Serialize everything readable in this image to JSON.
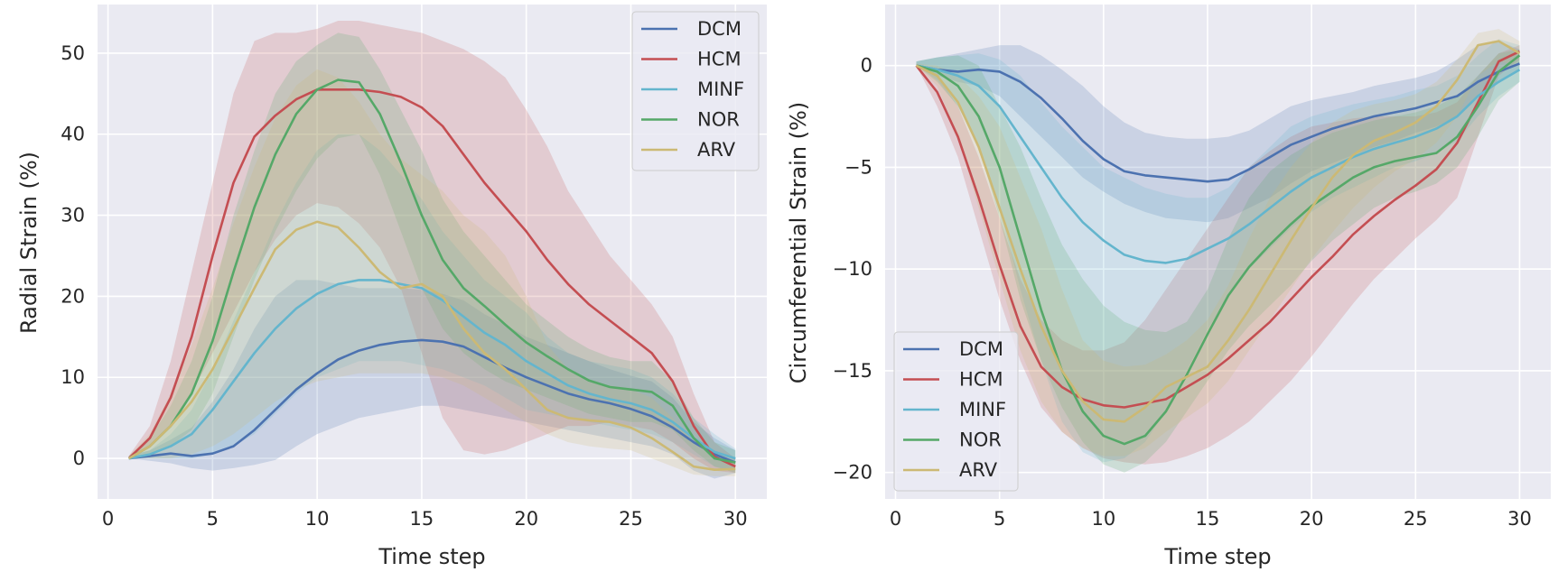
{
  "chart_data": [
    {
      "type": "line",
      "title": "",
      "xlabel": "Time step",
      "ylabel": "Radial Strain (%)",
      "xlim": [
        -0.5,
        31.5
      ],
      "ylim": [
        -5,
        56
      ],
      "xticks": [
        0,
        5,
        10,
        15,
        20,
        25,
        30
      ],
      "yticks": [
        0,
        10,
        20,
        30,
        40,
        50
      ],
      "grid": true,
      "legend_position": "top-right",
      "x": [
        1,
        2,
        3,
        4,
        5,
        6,
        7,
        8,
        9,
        10,
        11,
        12,
        13,
        14,
        15,
        16,
        17,
        18,
        19,
        20,
        21,
        22,
        23,
        24,
        25,
        26,
        27,
        28,
        29,
        30
      ],
      "series": [
        {
          "name": "DCM",
          "color": "#4c72b0",
          "values": [
            0,
            0.3,
            0.6,
            0.3,
            0.6,
            1.5,
            3.5,
            6,
            8.5,
            10.5,
            12.2,
            13.3,
            14,
            14.4,
            14.6,
            14.4,
            13.8,
            12.5,
            11.2,
            10,
            9,
            8,
            7.3,
            6.8,
            6.1,
            5.2,
            3.8,
            2,
            0.5,
            -0.5
          ],
          "lower": [
            0,
            -0.3,
            -0.6,
            -1.2,
            -1.5,
            -1.2,
            -0.8,
            -0.2,
            1.5,
            3,
            4,
            5,
            5.5,
            6,
            6.5,
            6.5,
            6,
            5.5,
            5,
            4.5,
            4,
            3.5,
            3,
            2.5,
            2,
            1.5,
            0.5,
            -1.5,
            -2.5,
            -1.8
          ],
          "upper": [
            0.3,
            1,
            2.3,
            3.8,
            7,
            11,
            16,
            20,
            22,
            22,
            21.5,
            21,
            21,
            21,
            20.8,
            20.3,
            19.5,
            17.8,
            16.5,
            15,
            14,
            13,
            12,
            11,
            10.2,
            9.5,
            7.5,
            4.5,
            2.5,
            1
          ]
        },
        {
          "name": "HCM",
          "color": "#c44e52",
          "values": [
            0,
            2.5,
            7.5,
            15,
            25,
            34,
            39.7,
            42.3,
            44.3,
            45.5,
            45.5,
            45.5,
            45.2,
            44.6,
            43.3,
            41,
            37.5,
            34,
            31,
            28,
            24.5,
            21.5,
            19,
            17,
            15,
            13,
            9.5,
            4,
            0.2,
            -1
          ],
          "lower": [
            0,
            1.5,
            4,
            8,
            13,
            18,
            23,
            27,
            30,
            31.5,
            31,
            29,
            26,
            21,
            13,
            5,
            1,
            0.5,
            1,
            2,
            3,
            4,
            4,
            4.5,
            4,
            3.5,
            2,
            0,
            -1.5,
            -1.8
          ],
          "upper": [
            0.3,
            4,
            12,
            23,
            34,
            45,
            51.5,
            52.5,
            52.5,
            53,
            54,
            54,
            53.5,
            53,
            52.5,
            51.5,
            50.5,
            49,
            47,
            43,
            38.5,
            33,
            29,
            25,
            22,
            19,
            15,
            8,
            2,
            0
          ]
        },
        {
          "name": "MINF",
          "color": "#64b5cd",
          "values": [
            0,
            0.5,
            1.5,
            3,
            6,
            9.5,
            13,
            16,
            18.5,
            20.3,
            21.5,
            22,
            22,
            21.5,
            21,
            19.5,
            17.5,
            15.5,
            14,
            12,
            10.5,
            9,
            8,
            7.3,
            6.8,
            6,
            4.5,
            2.5,
            0.8,
            0
          ],
          "lower": [
            0,
            0,
            0,
            0,
            0.5,
            1.5,
            3,
            5.5,
            8,
            10,
            11,
            12,
            12,
            12,
            11.5,
            11,
            10,
            9,
            7.5,
            6,
            5.5,
            5,
            4.5,
            4,
            3.5,
            3,
            2,
            0.5,
            -1,
            -1.5
          ],
          "upper": [
            0.3,
            1,
            3,
            6,
            11,
            17,
            23,
            29,
            34,
            38,
            40,
            40,
            38,
            35,
            32,
            28,
            25,
            22,
            20,
            18,
            15,
            13,
            12,
            11.5,
            11,
            10,
            8,
            5,
            3,
            1.2
          ]
        },
        {
          "name": "NOR",
          "color": "#55a868",
          "values": [
            0,
            1.5,
            4,
            8,
            14.5,
            23,
            31,
            37.5,
            42.5,
            45.5,
            46.7,
            46.4,
            42.5,
            36.5,
            30,
            24.5,
            21,
            18.8,
            16.5,
            14.3,
            12.6,
            11,
            9.6,
            8.8,
            8.5,
            8.2,
            6.5,
            2.5,
            0,
            -0.5
          ],
          "lower": [
            0,
            0.5,
            1.5,
            3.5,
            8,
            15,
            22,
            28,
            33,
            37,
            39.5,
            40,
            35,
            28,
            21,
            16,
            13,
            11,
            9.5,
            8.5,
            7.5,
            6.5,
            5.5,
            5,
            4.5,
            4.5,
            3.5,
            1,
            -1,
            -1.8
          ],
          "upper": [
            0.3,
            2.5,
            6.5,
            12,
            20,
            30,
            38,
            45,
            49,
            51,
            52.5,
            52,
            48,
            43,
            38,
            32,
            28,
            25,
            22,
            19,
            17,
            15,
            13.5,
            12.5,
            12,
            12,
            9.5,
            5,
            2,
            1
          ]
        },
        {
          "name": "ARV",
          "color": "#ccb974",
          "values": [
            0,
            1.5,
            4,
            7,
            11,
            16,
            21,
            25.8,
            28.2,
            29.2,
            28.5,
            26,
            23,
            21,
            21.5,
            20,
            16,
            13,
            11,
            8.5,
            6,
            5,
            4.7,
            4.5,
            3.8,
            2.5,
            0.8,
            -1,
            -1.4,
            -1.3
          ],
          "lower": [
            0,
            0,
            0,
            0.5,
            1.5,
            3,
            5,
            7,
            8.5,
            9.5,
            10,
            10.5,
            10.5,
            10.5,
            10.5,
            10,
            9,
            7.5,
            6,
            4.5,
            3,
            2,
            1.5,
            1.2,
            1,
            0,
            -1,
            -2,
            -2.2,
            -2.2
          ],
          "upper": [
            0.3,
            3,
            8,
            14,
            21,
            29,
            36,
            42,
            46,
            48,
            47,
            44,
            40,
            37,
            35,
            33,
            30,
            28,
            25,
            20,
            14,
            11,
            9.5,
            9,
            8.5,
            7.5,
            5,
            2,
            0,
            -0.5
          ]
        }
      ]
    },
    {
      "type": "line",
      "title": "",
      "xlabel": "Time step",
      "ylabel": "Circumferential Strain (%)",
      "xlim": [
        -0.5,
        31.5
      ],
      "ylim": [
        -21.3,
        3
      ],
      "xticks": [
        0,
        5,
        10,
        15,
        20,
        25,
        30
      ],
      "yticks": [
        0,
        -5,
        -10,
        -15,
        -20
      ],
      "grid": true,
      "legend_position": "bottom-left",
      "x": [
        1,
        2,
        3,
        4,
        5,
        6,
        7,
        8,
        9,
        10,
        11,
        12,
        13,
        14,
        15,
        16,
        17,
        18,
        19,
        20,
        21,
        22,
        23,
        24,
        25,
        26,
        27,
        28,
        29,
        30
      ],
      "series": [
        {
          "name": "DCM",
          "color": "#4c72b0",
          "values": [
            0,
            -0.2,
            -0.3,
            -0.2,
            -0.3,
            -0.8,
            -1.6,
            -2.6,
            -3.7,
            -4.6,
            -5.2,
            -5.4,
            -5.5,
            -5.6,
            -5.7,
            -5.6,
            -5.1,
            -4.5,
            -3.9,
            -3.5,
            -3.1,
            -2.8,
            -2.5,
            -2.3,
            -2.1,
            -1.8,
            -1.5,
            -0.8,
            -0.3,
            0.1
          ],
          "lower": [
            0,
            -0.5,
            -0.8,
            -1,
            -1.5,
            -2.5,
            -3.5,
            -4.5,
            -5.5,
            -6.2,
            -6.8,
            -7.2,
            -7.5,
            -7.6,
            -7.7,
            -7.5,
            -7,
            -6.5,
            -5.8,
            -5.2,
            -4.8,
            -4.4,
            -4,
            -3.7,
            -3.3,
            -3,
            -2.5,
            -1.5,
            -0.8,
            -0.2
          ],
          "upper": [
            0.2,
            0.4,
            0.6,
            0.8,
            1,
            1,
            0.5,
            -0.2,
            -1,
            -2,
            -2.8,
            -3.3,
            -3.5,
            -3.6,
            -3.6,
            -3.5,
            -3.2,
            -2.6,
            -2,
            -1.7,
            -1.5,
            -1.3,
            -1,
            -0.8,
            -0.6,
            -0.3,
            0.3,
            1,
            1.2,
            0.8
          ]
        },
        {
          "name": "HCM",
          "color": "#c44e52",
          "values": [
            0,
            -1.3,
            -3.5,
            -6.5,
            -9.8,
            -12.8,
            -14.8,
            -15.8,
            -16.4,
            -16.7,
            -16.8,
            -16.6,
            -16.4,
            -15.8,
            -15.2,
            -14.4,
            -13.5,
            -12.6,
            -11.5,
            -10.4,
            -9.4,
            -8.3,
            -7.4,
            -6.6,
            -5.9,
            -5.1,
            -3.8,
            -1.8,
            0.2,
            0.7
          ],
          "lower": [
            0,
            -2,
            -4.5,
            -8,
            -11.5,
            -14.5,
            -16.8,
            -18,
            -18.8,
            -19.3,
            -19.5,
            -19.6,
            -19.5,
            -19.2,
            -18.8,
            -18.2,
            -17.5,
            -16.5,
            -15.5,
            -14.3,
            -13,
            -11.7,
            -10.5,
            -9.5,
            -8.5,
            -7.6,
            -6.5,
            -3.5,
            -0.5,
            0.3
          ],
          "upper": [
            0.1,
            -0.5,
            -2,
            -4.5,
            -7.5,
            -10.5,
            -12.5,
            -13.5,
            -14,
            -14,
            -13.6,
            -12.5,
            -11,
            -9.5,
            -8,
            -6.5,
            -5,
            -4.2,
            -3.5,
            -3,
            -2.8,
            -2.6,
            -2.5,
            -2.5,
            -2.5,
            -2.3,
            -1.8,
            -0.5,
            0.6,
            1
          ]
        },
        {
          "name": "MINF",
          "color": "#64b5cd",
          "values": [
            0,
            -0.2,
            -0.5,
            -1,
            -2,
            -3.5,
            -5,
            -6.5,
            -7.7,
            -8.6,
            -9.3,
            -9.6,
            -9.7,
            -9.5,
            -9,
            -8.5,
            -7.8,
            -7,
            -6.2,
            -5.5,
            -5,
            -4.5,
            -4.1,
            -3.8,
            -3.5,
            -3.1,
            -2.5,
            -1.5,
            -0.8,
            -0.2
          ],
          "lower": [
            0,
            -0.7,
            -2,
            -4,
            -7,
            -11,
            -14.5,
            -17.5,
            -19,
            -19.5,
            -19.3,
            -18.5,
            -17,
            -15,
            -13,
            -11.3,
            -10,
            -9,
            -8,
            -7.2,
            -6.5,
            -6,
            -5.5,
            -5,
            -4.7,
            -4.3,
            -3.7,
            -2.5,
            -1.5,
            -0.8
          ],
          "upper": [
            0.2,
            0.4,
            0.5,
            0.6,
            0.3,
            -0.5,
            -1.8,
            -3,
            -4,
            -5,
            -5.5,
            -6,
            -6.3,
            -6.5,
            -6.5,
            -6,
            -5,
            -4,
            -3,
            -2.5,
            -2.2,
            -1.9,
            -1.7,
            -1.5,
            -1.2,
            -1,
            -0.5,
            0.5,
            1.3,
            1
          ]
        },
        {
          "name": "NOR",
          "color": "#55a868",
          "values": [
            0,
            -0.3,
            -1,
            -2.5,
            -5,
            -8.5,
            -12,
            -15,
            -17,
            -18.2,
            -18.6,
            -18.2,
            -17,
            -15.2,
            -13.2,
            -11.3,
            -9.9,
            -8.8,
            -7.8,
            -6.9,
            -6.2,
            -5.5,
            -5,
            -4.7,
            -4.5,
            -4.3,
            -3.5,
            -2,
            -0.3,
            0.5
          ],
          "lower": [
            0,
            -0.8,
            -2,
            -4,
            -7.5,
            -11.5,
            -14.5,
            -16.8,
            -18.5,
            -19.6,
            -20,
            -19.5,
            -18.5,
            -17,
            -15.5,
            -14,
            -12.8,
            -11.8,
            -10.8,
            -9.6,
            -8.6,
            -7.8,
            -7,
            -6.5,
            -6.2,
            -5.8,
            -5,
            -3.5,
            -1.7,
            -0.8
          ],
          "upper": [
            0.2,
            0.4,
            0.5,
            0,
            -2,
            -4,
            -6.5,
            -8.8,
            -10.5,
            -11.8,
            -12.6,
            -13,
            -13.1,
            -12.6,
            -11,
            -8.5,
            -6.5,
            -5.2,
            -4.4,
            -3.8,
            -3.3,
            -3,
            -2.7,
            -2.5,
            -2.3,
            -2,
            -1.5,
            -0.5,
            0.6,
            0.8
          ]
        },
        {
          "name": "ARV",
          "color": "#ccb974",
          "values": [
            0,
            -0.5,
            -1.8,
            -4,
            -7,
            -10,
            -12.8,
            -15,
            -16.5,
            -17.4,
            -17.5,
            -16.8,
            -15.8,
            -15.3,
            -14.8,
            -13.5,
            -12,
            -10.3,
            -8.6,
            -7,
            -5.5,
            -4.4,
            -3.7,
            -3.3,
            -2.8,
            -2,
            -0.7,
            1,
            1.2,
            0.6
          ],
          "lower": [
            0,
            -1,
            -3.5,
            -7,
            -10.5,
            -14,
            -16.5,
            -18,
            -18.8,
            -19.2,
            -19.2,
            -18.8,
            -18,
            -17.3,
            -16.6,
            -15.5,
            -14,
            -12.5,
            -11,
            -9.5,
            -8.2,
            -7,
            -6,
            -5.2,
            -4.6,
            -3.8,
            -2.5,
            -0.5,
            0.2,
            0
          ],
          "upper": [
            0.1,
            0,
            -0.5,
            -1.5,
            -3,
            -5.5,
            -8,
            -11,
            -13.5,
            -14.5,
            -14.8,
            -14.7,
            -14.2,
            -13.5,
            -12.5,
            -10.8,
            -8.5,
            -6.5,
            -5,
            -3.8,
            -2.8,
            -2.2,
            -1.9,
            -1.7,
            -1.4,
            -0.8,
            0.3,
            1.6,
            1.8,
            1.2
          ]
        }
      ]
    }
  ]
}
